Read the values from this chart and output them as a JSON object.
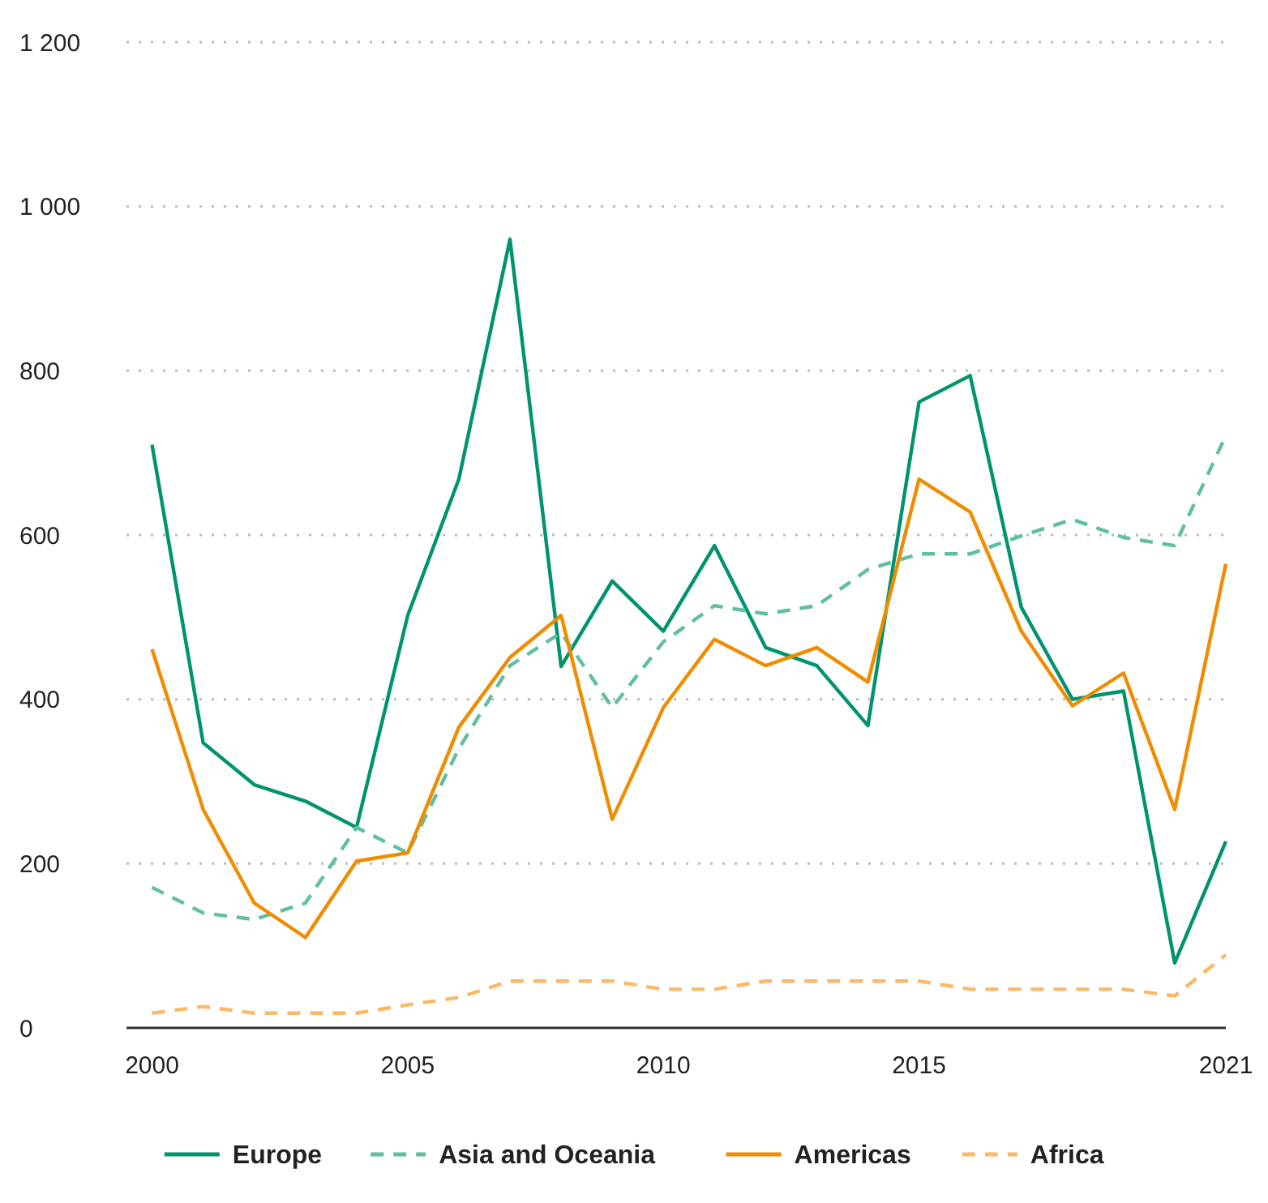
{
  "chart_data": {
    "type": "line",
    "x": [
      2000,
      2001,
      2002,
      2003,
      2004,
      2005,
      2006,
      2007,
      2008,
      2009,
      2010,
      2011,
      2012,
      2013,
      2014,
      2015,
      2016,
      2017,
      2018,
      2019,
      2020,
      2021
    ],
    "xlim": [
      1999.5,
      2021
    ],
    "xticks": [
      2000,
      2005,
      2010,
      2015,
      2021
    ],
    "ylim": [
      0,
      1200
    ],
    "yticks": [
      0,
      200,
      400,
      600,
      800,
      {
        "value": 1000,
        "label": "1 000"
      },
      {
        "value": 1200,
        "label": "1 200"
      }
    ],
    "grid": "y",
    "legend": "bottom",
    "series": [
      {
        "name": "Europe",
        "color": "#00936f",
        "line_style": "solid",
        "values": [
          710,
          347,
          296,
          276,
          244,
          502,
          668,
          960,
          440,
          544,
          483,
          587,
          463,
          441,
          368,
          762,
          794,
          512,
          400,
          410,
          79,
          227
        ]
      },
      {
        "name": "Asia and Oceania",
        "color": "#5fbfa0",
        "line_style": "dashed",
        "values": [
          171,
          140,
          132,
          152,
          244,
          213,
          340,
          441,
          481,
          390,
          470,
          514,
          504,
          514,
          558,
          577,
          577,
          599,
          619,
          597,
          587,
          721
        ]
      },
      {
        "name": "Americas",
        "color": "#f08c00",
        "line_style": "solid",
        "values": [
          461,
          266,
          152,
          110,
          203,
          213,
          366,
          451,
          502,
          254,
          390,
          473,
          441,
          463,
          421,
          668,
          628,
          483,
          392,
          432,
          266,
          565
        ]
      },
      {
        "name": "Africa",
        "color": "#fbb867",
        "line_style": "dashed",
        "values": [
          18,
          26,
          18,
          18,
          18,
          28,
          37,
          57,
          57,
          57,
          47,
          47,
          57,
          57,
          57,
          57,
          47,
          47,
          47,
          47,
          39,
          89
        ]
      }
    ]
  }
}
